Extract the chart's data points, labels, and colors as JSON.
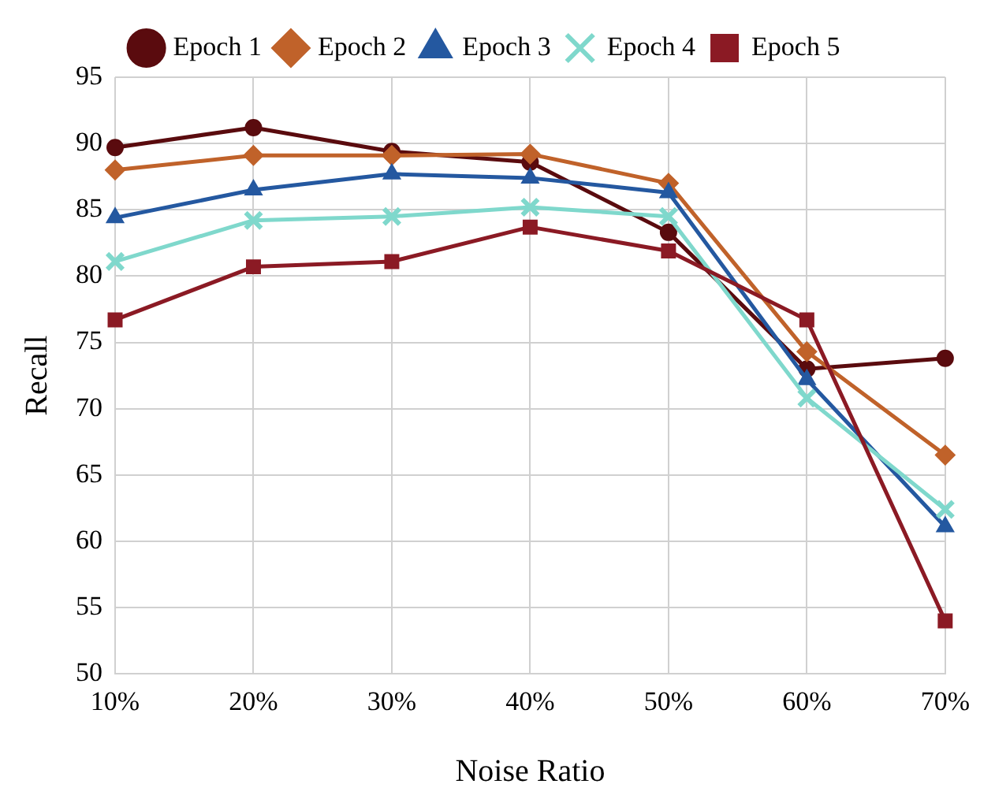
{
  "chart_data": {
    "type": "line",
    "xlabel": "Noise Ratio",
    "ylabel": "Recall",
    "categories": [
      "10%",
      "20%",
      "30%",
      "40%",
      "50%",
      "60%",
      "70%"
    ],
    "ylim": [
      50,
      95
    ],
    "yticks": [
      50,
      55,
      60,
      65,
      70,
      75,
      80,
      85,
      90,
      95
    ],
    "grid": true,
    "legend": "top",
    "line_style": "solid",
    "series": [
      {
        "name": "Epoch 1",
        "color": "#5a0b0e",
        "marker": "circle",
        "values": [
          89.7,
          91.2,
          89.4,
          88.6,
          83.3,
          73.0,
          73.8
        ]
      },
      {
        "name": "Epoch 2",
        "color": "#c0622a",
        "marker": "diamond",
        "values": [
          88.0,
          89.1,
          89.1,
          89.2,
          87.0,
          74.3,
          66.5
        ]
      },
      {
        "name": "Epoch 3",
        "color": "#2458a0",
        "marker": "triangle",
        "values": [
          84.4,
          86.5,
          87.7,
          87.4,
          86.3,
          72.2,
          61.1
        ]
      },
      {
        "name": "Epoch 4",
        "color": "#7fd8cc",
        "marker": "cross",
        "values": [
          81.1,
          84.2,
          84.5,
          85.2,
          84.5,
          70.8,
          62.4
        ]
      },
      {
        "name": "Epoch 5",
        "color": "#8b1a24",
        "marker": "square",
        "values": [
          76.7,
          80.7,
          81.1,
          83.7,
          81.9,
          76.7,
          54.0
        ]
      }
    ]
  }
}
